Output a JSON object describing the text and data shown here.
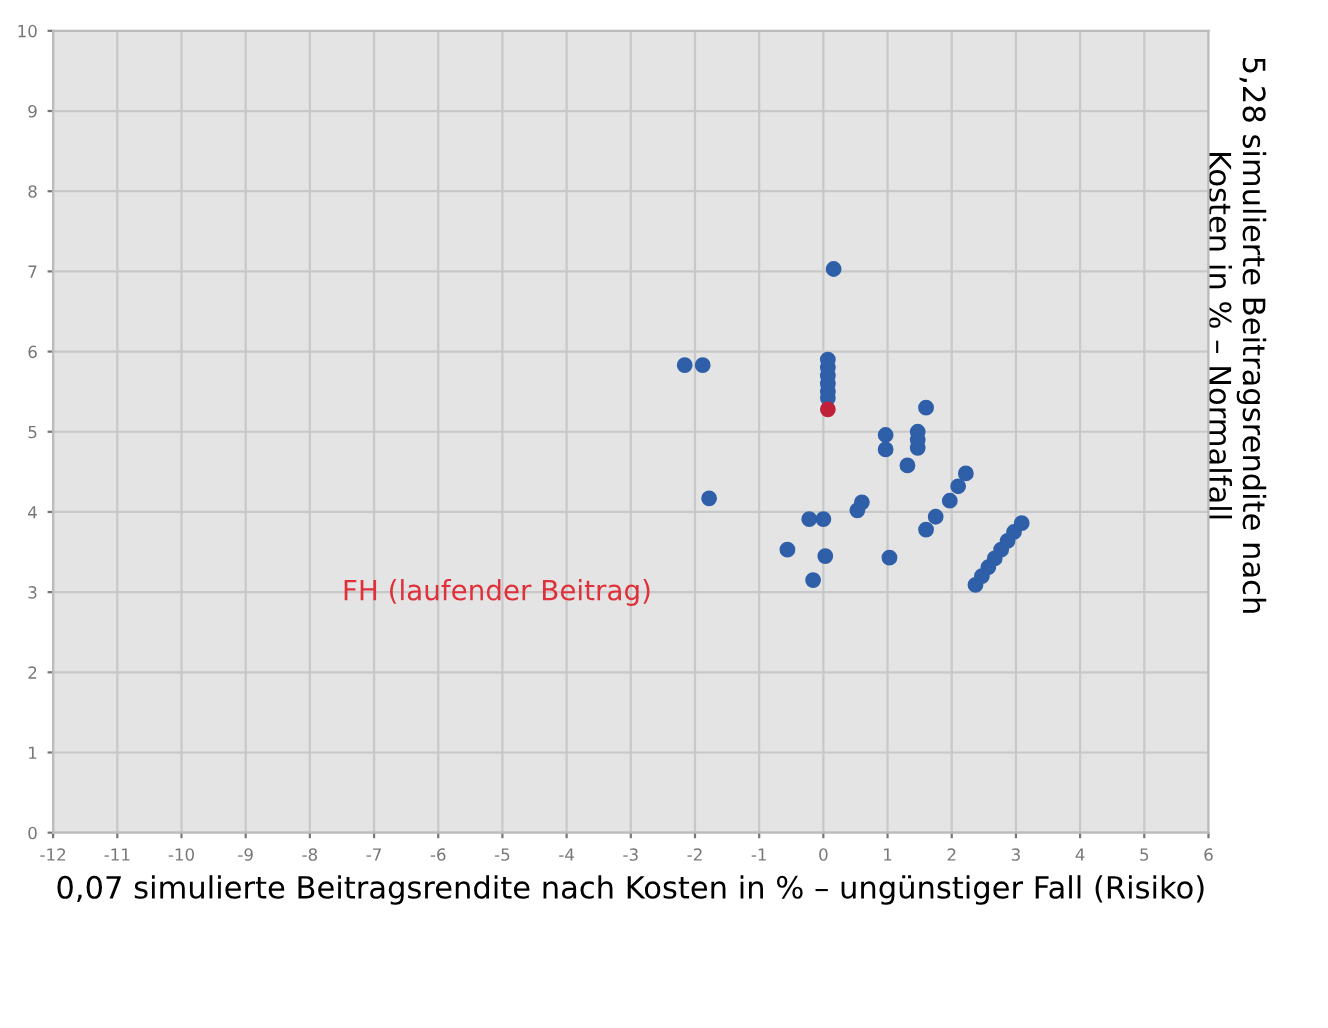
{
  "chart_data": {
    "type": "scatter",
    "xlabel": "0,07 simulierte Beitragsrendite nach Kosten in % – ungünstiger Fall (Risiko)",
    "ylabel": "5,28 simulierte Beitragsrendite nach Kosten in % – Normalfall",
    "annotations": [
      "FH (laufender Beitrag)"
    ],
    "series": [
      {
        "color": "#2e5fa8",
        "x": [
          0.16,
          -2.16,
          -1.88,
          -1.78,
          0.07,
          0.07,
          0.07,
          0.07,
          0.07,
          0.07,
          -0.22,
          0,
          -0.56,
          0.03,
          -0.16,
          1.6,
          0.97,
          0.97,
          1.47,
          1.47,
          1.47,
          1.31,
          2.22,
          2.1,
          1.97,
          1.75,
          1.6,
          0.6,
          0.53,
          1.03,
          2.37,
          2.47,
          2.57,
          2.67,
          2.77,
          2.87,
          2.97,
          3.09
        ],
        "values": [
          7.03,
          5.83,
          5.83,
          4.17,
          5.9,
          5.8,
          5.7,
          5.6,
          5.5,
          5.42,
          3.91,
          3.91,
          3.53,
          3.45,
          3.15,
          5.3,
          4.96,
          4.78,
          5.0,
          4.9,
          4.8,
          4.58,
          4.48,
          4.32,
          4.14,
          3.94,
          3.78,
          4.12,
          4.02,
          3.43,
          3.09,
          3.2,
          3.31,
          3.42,
          3.53,
          3.64,
          3.75,
          3.86
        ]
      },
      {
        "color": "#c0213a",
        "x": [
          0.07
        ],
        "values": [
          5.28
        ]
      }
    ],
    "xlim": [
      -12,
      6
    ],
    "xticks": [
      -12,
      -11,
      -10,
      -9,
      -8,
      -7,
      -6,
      -5,
      -4,
      -3,
      -2,
      -1,
      0,
      1,
      2,
      3,
      4,
      5,
      6
    ],
    "ylim": [
      0,
      10
    ],
    "yticks": [
      0,
      1,
      2,
      3,
      4,
      5,
      6,
      7,
      8,
      9,
      10
    ],
    "grid": true,
    "marker": "circle"
  }
}
